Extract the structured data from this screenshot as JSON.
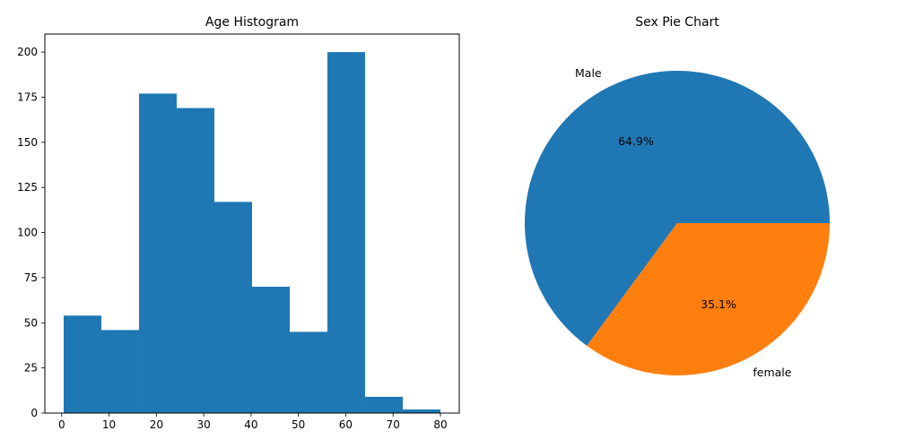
{
  "chart_data": [
    {
      "type": "bar",
      "title": "Age Histogram",
      "xlabel": "",
      "ylabel": "",
      "bins": [
        {
          "x0": 0.42,
          "x1": 8.38,
          "count": 54
        },
        {
          "x0": 8.38,
          "x1": 16.34,
          "count": 46
        },
        {
          "x0": 16.34,
          "x1": 24.29,
          "count": 177
        },
        {
          "x0": 24.29,
          "x1": 32.25,
          "count": 169
        },
        {
          "x0": 32.25,
          "x1": 40.21,
          "count": 117
        },
        {
          "x0": 40.21,
          "x1": 48.17,
          "count": 70
        },
        {
          "x0": 48.17,
          "x1": 56.13,
          "count": 45
        },
        {
          "x0": 56.13,
          "x1": 64.08,
          "count": 200
        },
        {
          "x0": 64.08,
          "x1": 72.04,
          "count": 9
        },
        {
          "x0": 72.04,
          "x1": 80.0,
          "count": 2
        }
      ],
      "xlim": [
        -3.56,
        83.98
      ],
      "ylim": [
        0,
        210
      ],
      "xticks": [
        "0",
        "10",
        "20",
        "30",
        "40",
        "50",
        "60",
        "70",
        "80"
      ],
      "yticks": [
        "0",
        "25",
        "50",
        "75",
        "100",
        "125",
        "150",
        "175",
        "200"
      ],
      "color": "#1f77b4",
      "grid": false
    },
    {
      "type": "pie",
      "title": "Sex Pie Chart",
      "labels": [
        "Male",
        "female"
      ],
      "values": [
        64.9,
        35.1
      ],
      "percent_labels": [
        "64.9%",
        "35.1%"
      ],
      "colors": [
        "#1f77b4",
        "#ff7f0e"
      ],
      "start_angle": 0
    }
  ]
}
